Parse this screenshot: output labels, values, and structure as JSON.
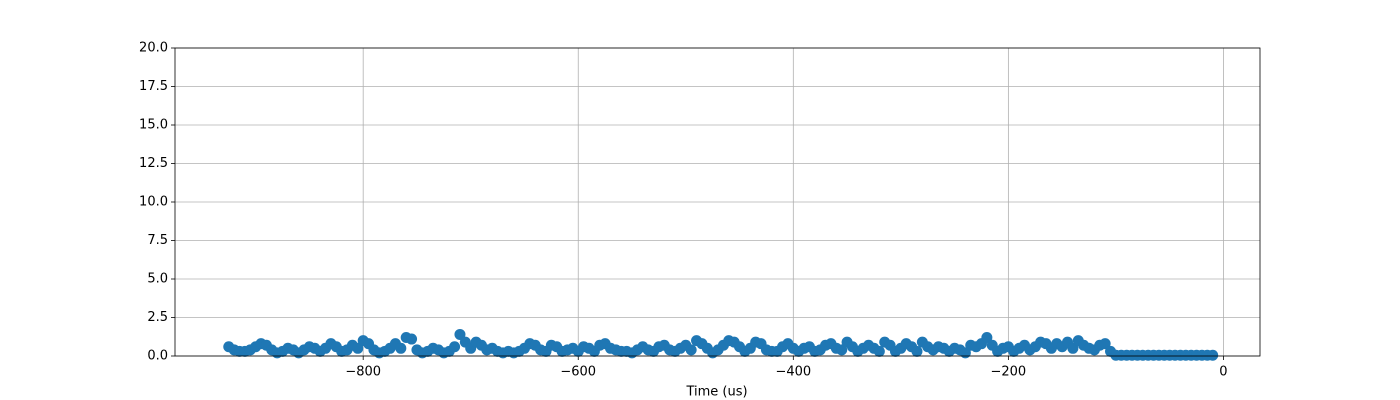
{
  "chart_data": {
    "type": "scatter",
    "xlabel": "Time (us)",
    "color": "#1f77b4",
    "grid": true,
    "xlim": [
      -975,
      34
    ],
    "ylim": [
      0,
      20
    ],
    "xticks": [
      {
        "value": -800,
        "label": "−800"
      },
      {
        "value": -600,
        "label": "−600"
      },
      {
        "value": -400,
        "label": "−400"
      },
      {
        "value": -200,
        "label": "−200"
      },
      {
        "value": 0,
        "label": "0"
      }
    ],
    "yticks": [
      {
        "value": 0,
        "label": "0.0"
      },
      {
        "value": 2.5,
        "label": "2.5"
      },
      {
        "value": 5,
        "label": "5.0"
      },
      {
        "value": 7.5,
        "label": "7.5"
      },
      {
        "value": 10,
        "label": "10.0"
      },
      {
        "value": 12.5,
        "label": "12.5"
      },
      {
        "value": 15,
        "label": "15.0"
      },
      {
        "value": 17.5,
        "label": "17.5"
      },
      {
        "value": 20,
        "label": "20.0"
      }
    ],
    "x": [
      -925,
      -920,
      -915,
      -910,
      -905,
      -900,
      -895,
      -890,
      -885,
      -880,
      -875,
      -870,
      -865,
      -860,
      -855,
      -850,
      -845,
      -840,
      -835,
      -830,
      -825,
      -820,
      -815,
      -810,
      -805,
      -800,
      -795,
      -790,
      -785,
      -780,
      -775,
      -770,
      -765,
      -760,
      -755,
      -750,
      -745,
      -740,
      -735,
      -730,
      -725,
      -720,
      -715,
      -710,
      -705,
      -700,
      -695,
      -690,
      -685,
      -680,
      -675,
      -670,
      -665,
      -660,
      -655,
      -650,
      -645,
      -640,
      -635,
      -630,
      -625,
      -620,
      -615,
      -610,
      -605,
      -600,
      -595,
      -590,
      -585,
      -580,
      -575,
      -570,
      -565,
      -560,
      -555,
      -550,
      -545,
      -540,
      -535,
      -530,
      -525,
      -520,
      -515,
      -510,
      -505,
      -500,
      -495,
      -490,
      -485,
      -480,
      -475,
      -470,
      -465,
      -460,
      -455,
      -450,
      -445,
      -440,
      -435,
      -430,
      -425,
      -420,
      -415,
      -410,
      -405,
      -400,
      -395,
      -390,
      -385,
      -380,
      -375,
      -370,
      -365,
      -360,
      -355,
      -350,
      -345,
      -340,
      -335,
      -330,
      -325,
      -320,
      -315,
      -310,
      -305,
      -300,
      -295,
      -290,
      -285,
      -280,
      -275,
      -270,
      -265,
      -260,
      -255,
      -250,
      -245,
      -240,
      -235,
      -230,
      -225,
      -220,
      -215,
      -210,
      -205,
      -200,
      -195,
      -190,
      -185,
      -180,
      -175,
      -170,
      -165,
      -160,
      -155,
      -150,
      -145,
      -140,
      -135,
      -130,
      -125,
      -120,
      -115,
      -110,
      -105,
      -100,
      -95,
      -90,
      -85,
      -80,
      -75,
      -70,
      -65,
      -60,
      -55,
      -50,
      -45,
      -40,
      -35,
      -30,
      -25,
      -20,
      -15,
      -10
    ],
    "values": [
      0.6,
      0.4,
      0.3,
      0.3,
      0.4,
      0.6,
      0.8,
      0.7,
      0.4,
      0.2,
      0.3,
      0.5,
      0.4,
      0.2,
      0.4,
      0.6,
      0.5,
      0.3,
      0.5,
      0.8,
      0.6,
      0.3,
      0.4,
      0.7,
      0.5,
      1.0,
      0.8,
      0.4,
      0.2,
      0.3,
      0.5,
      0.8,
      0.5,
      1.2,
      1.1,
      0.4,
      0.2,
      0.3,
      0.5,
      0.4,
      0.2,
      0.3,
      0.6,
      1.4,
      0.9,
      0.5,
      0.9,
      0.7,
      0.4,
      0.5,
      0.3,
      0.2,
      0.3,
      0.2,
      0.3,
      0.5,
      0.8,
      0.7,
      0.4,
      0.3,
      0.7,
      0.6,
      0.3,
      0.4,
      0.5,
      0.3,
      0.6,
      0.5,
      0.3,
      0.7,
      0.8,
      0.5,
      0.4,
      0.3,
      0.3,
      0.2,
      0.4,
      0.6,
      0.4,
      0.3,
      0.6,
      0.7,
      0.4,
      0.3,
      0.5,
      0.7,
      0.4,
      1.0,
      0.8,
      0.5,
      0.2,
      0.4,
      0.7,
      1.0,
      0.9,
      0.6,
      0.3,
      0.5,
      0.9,
      0.8,
      0.4,
      0.3,
      0.3,
      0.6,
      0.8,
      0.5,
      0.3,
      0.5,
      0.6,
      0.3,
      0.4,
      0.7,
      0.8,
      0.5,
      0.4,
      0.9,
      0.6,
      0.3,
      0.5,
      0.7,
      0.5,
      0.3,
      0.9,
      0.7,
      0.3,
      0.5,
      0.8,
      0.6,
      0.3,
      0.9,
      0.6,
      0.4,
      0.6,
      0.5,
      0.3,
      0.5,
      0.4,
      0.2,
      0.7,
      0.6,
      0.8,
      1.2,
      0.7,
      0.3,
      0.5,
      0.6,
      0.3,
      0.5,
      0.7,
      0.4,
      0.6,
      0.9,
      0.8,
      0.5,
      0.8,
      0.6,
      0.9,
      0.5,
      1.0,
      0.7,
      0.5,
      0.4,
      0.7,
      0.8,
      0.3,
      0.05,
      0.05,
      0.05,
      0.05,
      0.05,
      0.05,
      0.05,
      0.05,
      0.05,
      0.05,
      0.05,
      0.05,
      0.05,
      0.05,
      0.05,
      0.05,
      0.05,
      0.05,
      0.05
    ]
  }
}
